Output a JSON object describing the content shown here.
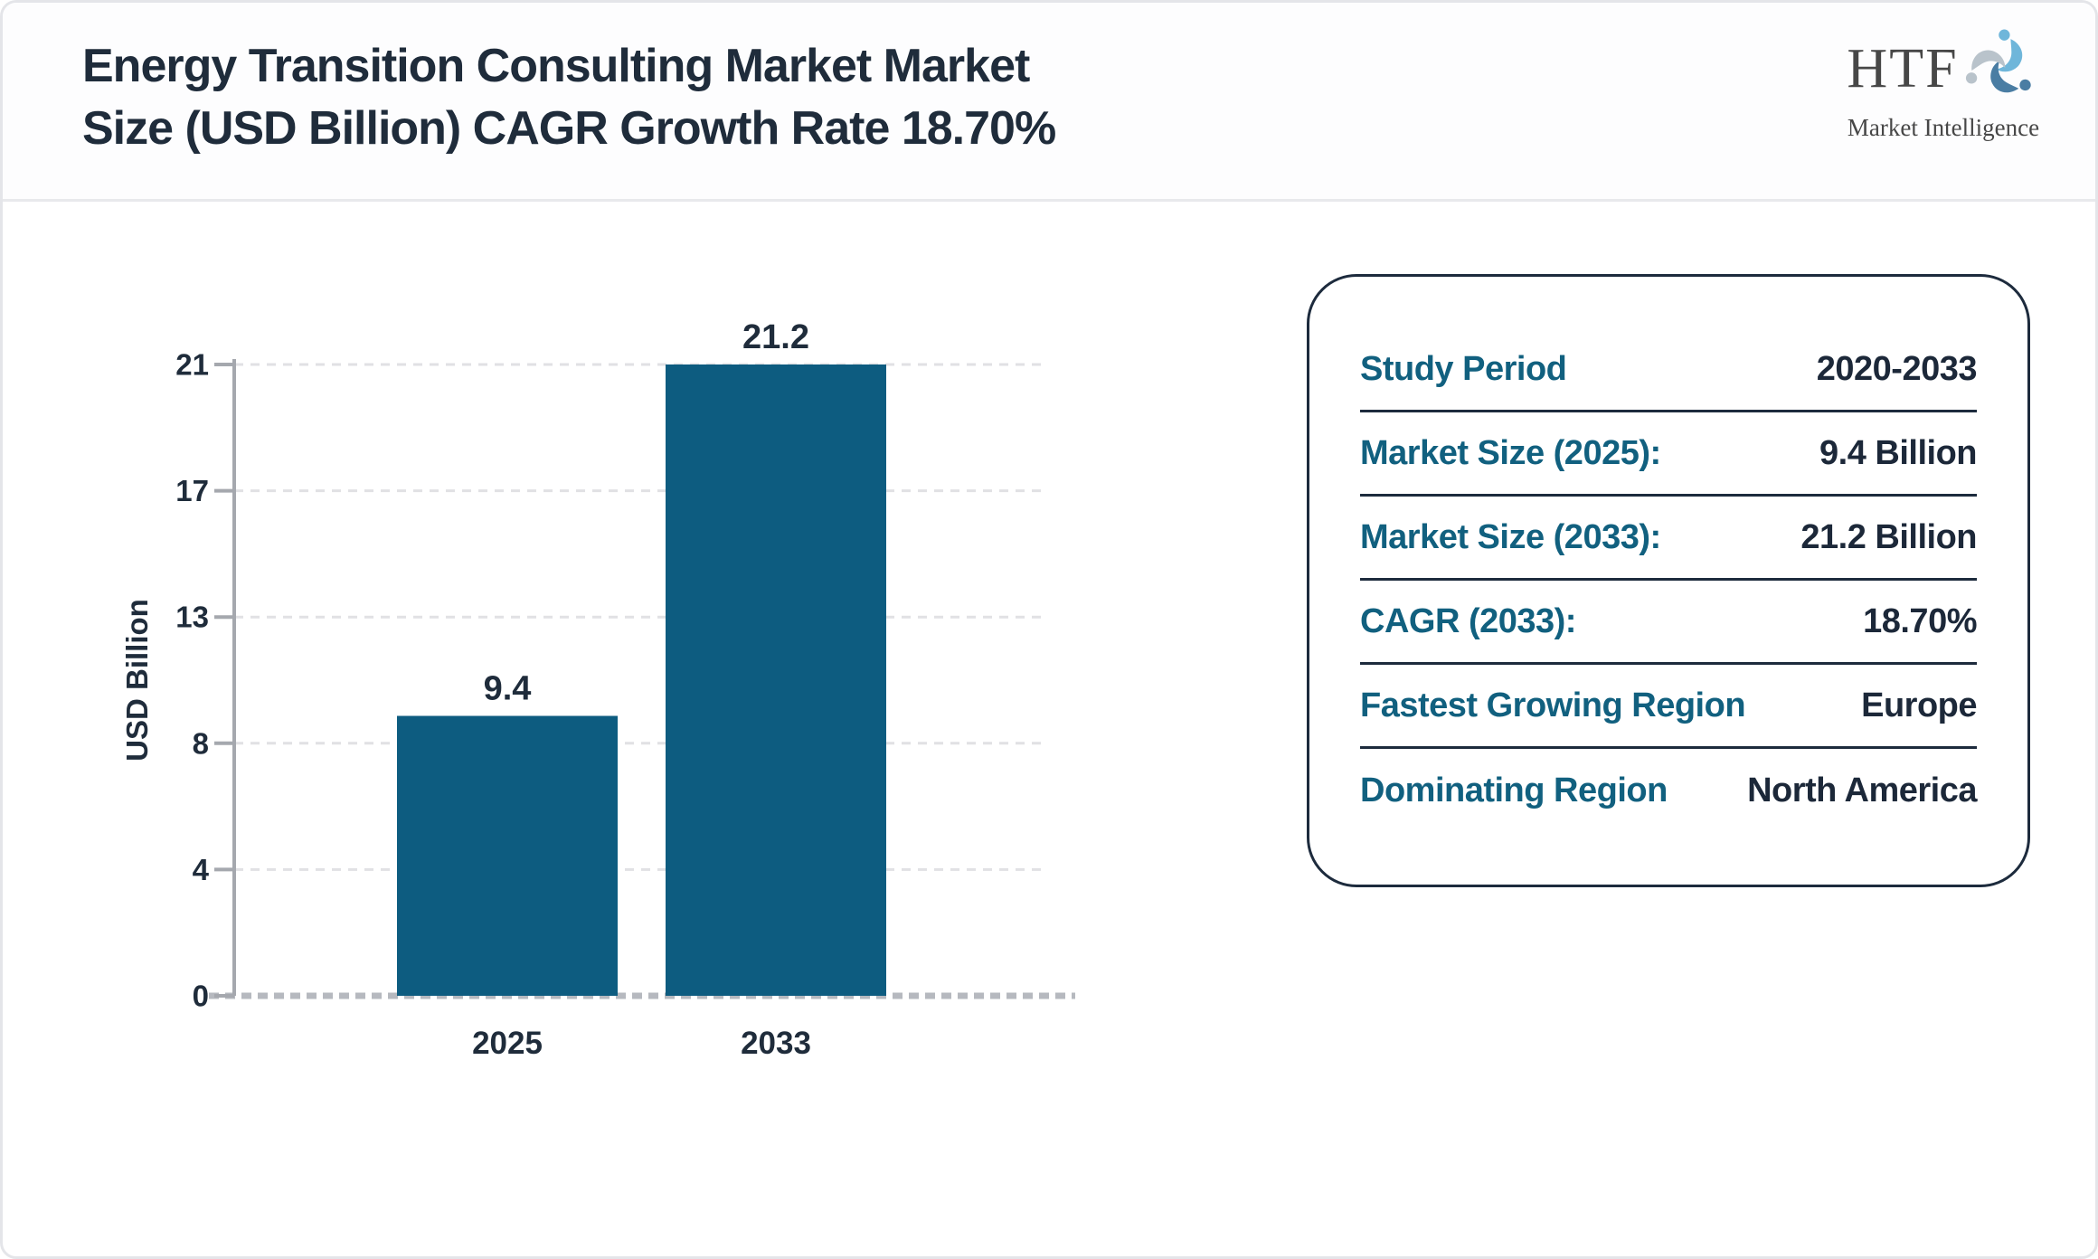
{
  "header": {
    "title_line1": "Energy Transition Consulting Market Market",
    "title_line2": "Size (USD Billion) CAGR Growth Rate 18.70%"
  },
  "logo": {
    "name": "HTF",
    "tagline": "Market Intelligence",
    "icon": "swirl-figures-icon",
    "colors": {
      "light_blue": "#6fb6da",
      "steel_blue": "#4a7da3",
      "gray_blue": "#b9c3cb",
      "text_gray": "#474747"
    }
  },
  "chart_data": {
    "type": "bar",
    "title": "Energy Transition Consulting Market Market Size (USD Billion) CAGR Growth Rate 18.70%",
    "categories": [
      "2025",
      "2033"
    ],
    "values": [
      9.4,
      21.2
    ],
    "value_labels": [
      "9.4",
      "21.2"
    ],
    "xlabel": "",
    "ylabel": "USD Billion",
    "ylim": [
      0,
      21.2
    ],
    "ytick_labels": [
      "0",
      "4",
      "8",
      "13",
      "17",
      "21"
    ],
    "bar_color": "#0d5c80",
    "text_color": "#1f2c3b",
    "grid": "horizontal-dashed",
    "legend": "none"
  },
  "panel": {
    "rows": [
      {
        "label": "Study Period",
        "value": "2020-2033"
      },
      {
        "label": "Market Size (2025):",
        "value": "9.4 Billion"
      },
      {
        "label": "Market Size (2033):",
        "value": "21.2 Billion"
      },
      {
        "label": "CAGR (2033):",
        "value": "18.70%"
      },
      {
        "label": "Fastest Growing Region",
        "value": "Europe"
      },
      {
        "label": "Dominating Region",
        "value": "North America"
      }
    ],
    "label_color": "#11607f",
    "value_color": "#1c2839",
    "border_color": "#1d2b3d"
  }
}
